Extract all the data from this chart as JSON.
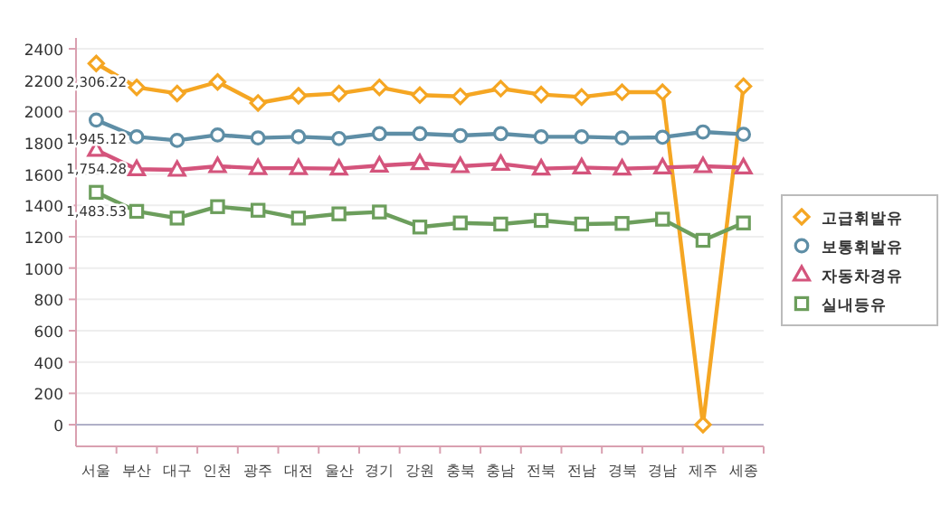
{
  "chart_data": {
    "type": "line",
    "categories": [
      "서울",
      "부산",
      "대구",
      "인천",
      "광주",
      "대전",
      "울산",
      "경기",
      "강원",
      "충북",
      "충남",
      "전북",
      "전남",
      "경북",
      "경남",
      "제주",
      "세종"
    ],
    "ylim": [
      0,
      2400
    ],
    "yticks": [
      0,
      200,
      400,
      600,
      800,
      1000,
      1200,
      1400,
      1600,
      1800,
      2000,
      2200,
      2400
    ],
    "grid": "y",
    "legend": "right",
    "series": [
      {
        "name": "고급휘발유",
        "color": "#f5a623",
        "marker": "diamond",
        "values": [
          2306.22,
          2154,
          2115,
          2188,
          2054,
          2100,
          2115,
          2154,
          2104,
          2096,
          2146,
          2108,
          2092,
          2123,
          2123,
          0,
          2161
        ],
        "value_labels": [
          "2,306.22",
          null,
          null,
          null,
          null,
          null,
          null,
          null,
          null,
          null,
          null,
          null,
          null,
          null,
          null,
          null,
          null
        ]
      },
      {
        "name": "보통휘발유",
        "color": "#5e8ea6",
        "marker": "circle",
        "values": [
          1945.12,
          1838,
          1815,
          1850,
          1831,
          1838,
          1827,
          1858,
          1858,
          1846,
          1858,
          1838,
          1838,
          1831,
          1835,
          1869,
          1854
        ],
        "value_labels": [
          "1,945.12",
          null,
          null,
          null,
          null,
          null,
          null,
          null,
          null,
          null,
          null,
          null,
          null,
          null,
          null,
          null,
          null
        ]
      },
      {
        "name": "자동차경유",
        "color": "#d4547c",
        "marker": "triangle",
        "values": [
          1754.28,
          1631,
          1627,
          1650,
          1638,
          1638,
          1635,
          1654,
          1669,
          1650,
          1665,
          1635,
          1642,
          1635,
          1642,
          1650,
          1642
        ],
        "value_labels": [
          "1,754.28",
          null,
          null,
          null,
          null,
          null,
          null,
          null,
          null,
          null,
          null,
          null,
          null,
          null,
          null,
          null,
          null
        ]
      },
      {
        "name": "실내등유",
        "color": "#6c9e5c",
        "marker": "square",
        "values": [
          1483.53,
          1362,
          1319,
          1392,
          1369,
          1319,
          1346,
          1358,
          1262,
          1288,
          1281,
          1304,
          1281,
          1285,
          1312,
          1177,
          1288
        ],
        "value_labels": [
          "1,483.53",
          null,
          null,
          null,
          null,
          null,
          null,
          null,
          null,
          null,
          null,
          null,
          null,
          null,
          null,
          null,
          null
        ]
      }
    ]
  }
}
